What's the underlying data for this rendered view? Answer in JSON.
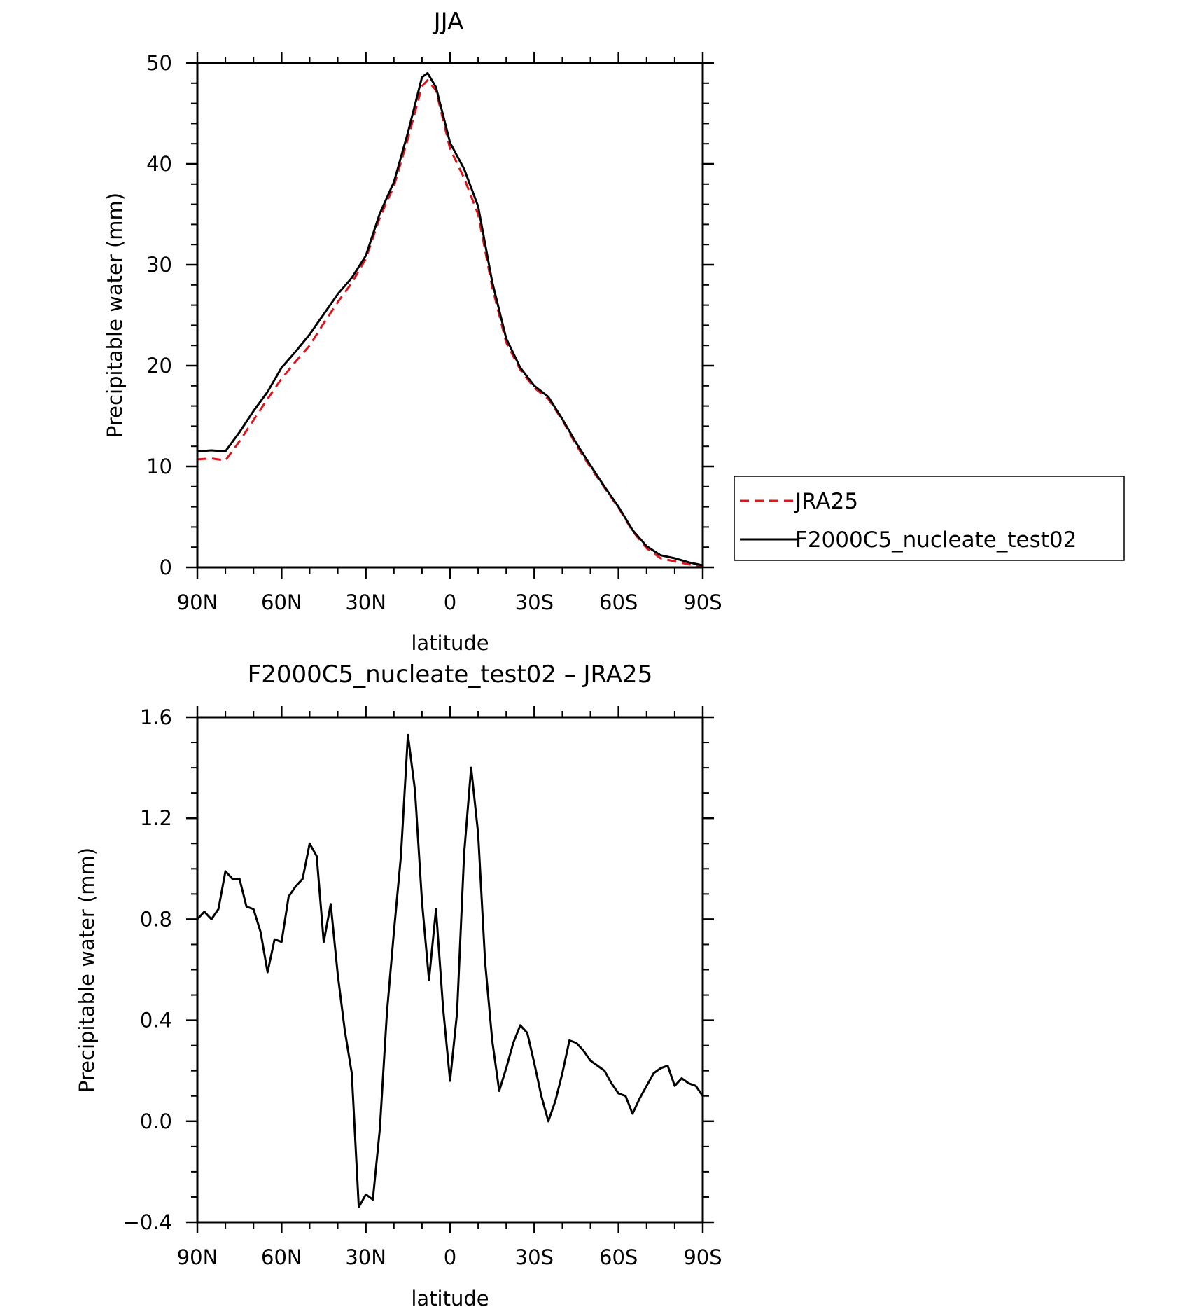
{
  "chart_data": [
    {
      "type": "line",
      "title": "JJA",
      "xlabel": "latitude",
      "ylabel": "Precipitable water (mm)",
      "xlim": [
        90,
        -90
      ],
      "ylim": [
        0,
        50
      ],
      "x_ticks": [
        {
          "value": 90,
          "label": "90N"
        },
        {
          "value": 60,
          "label": "60N"
        },
        {
          "value": 30,
          "label": "30N"
        },
        {
          "value": 0,
          "label": "0"
        },
        {
          "value": -30,
          "label": "30S"
        },
        {
          "value": -60,
          "label": "60S"
        },
        {
          "value": -90,
          "label": "90S"
        }
      ],
      "y_ticks": [
        {
          "value": 0,
          "label": "0"
        },
        {
          "value": 10,
          "label": "10"
        },
        {
          "value": 20,
          "label": "20"
        },
        {
          "value": 30,
          "label": "30"
        },
        {
          "value": 40,
          "label": "40"
        },
        {
          "value": 50,
          "label": "50"
        }
      ],
      "legend": {
        "placement": "right",
        "entries": [
          "JRA25",
          "F2000C5_nucleate_test02"
        ]
      },
      "series": [
        {
          "name": "JRA25",
          "color": "#e0141e",
          "dash": "dashed",
          "x": [
            90,
            85,
            80,
            75,
            70,
            65,
            60,
            55,
            50,
            45,
            40,
            35,
            30,
            25,
            20,
            15,
            10,
            8,
            5,
            0,
            -5,
            -10,
            -15,
            -20,
            -25,
            -30,
            -35,
            -40,
            -45,
            -50,
            -55,
            -60,
            -65,
            -70,
            -75,
            -80,
            -85,
            -90
          ],
          "values": [
            10.7,
            10.8,
            10.6,
            12.5,
            14.6,
            16.7,
            18.7,
            20.4,
            22.0,
            24.2,
            26.3,
            28.2,
            30.6,
            34.7,
            37.8,
            42.5,
            47.7,
            48.3,
            47.3,
            41.5,
            38.6,
            35.0,
            27.8,
            22.3,
            19.6,
            17.8,
            16.7,
            14.6,
            12.1,
            9.9,
            7.9,
            5.9,
            3.6,
            1.9,
            0.9,
            0.6,
            0.3,
            0.1
          ]
        },
        {
          "name": "F2000C5_nucleate_test02",
          "color": "#000000",
          "dash": "solid",
          "x": [
            90,
            85,
            80,
            75,
            70,
            65,
            60,
            55,
            50,
            45,
            40,
            35,
            30,
            25,
            20,
            15,
            10,
            8,
            5,
            0,
            -5,
            -10,
            -15,
            -20,
            -25,
            -30,
            -35,
            -40,
            -45,
            -50,
            -55,
            -60,
            -65,
            -70,
            -75,
            -80,
            -85,
            -90
          ],
          "values": [
            11.5,
            11.6,
            11.5,
            13.4,
            15.5,
            17.4,
            19.8,
            21.4,
            23.1,
            25.1,
            27.1,
            28.7,
            30.9,
            35.1,
            38.2,
            43.1,
            48.6,
            49.0,
            47.6,
            42.1,
            39.5,
            35.8,
            28.3,
            22.7,
            19.8,
            18.0,
            16.9,
            14.7,
            12.3,
            10.1,
            8.0,
            6.0,
            3.7,
            2.1,
            1.2,
            0.9,
            0.5,
            0.2
          ]
        }
      ]
    },
    {
      "type": "line",
      "title": "F2000C5_nucleate_test02 – JRA25",
      "xlabel": "latitude",
      "ylabel": "Precipitable water (mm)",
      "xlim": [
        90,
        -90
      ],
      "ylim": [
        -0.4,
        1.6
      ],
      "x_ticks": [
        {
          "value": 90,
          "label": "90N"
        },
        {
          "value": 60,
          "label": "60N"
        },
        {
          "value": 30,
          "label": "30N"
        },
        {
          "value": 0,
          "label": "0"
        },
        {
          "value": -30,
          "label": "30S"
        },
        {
          "value": -60,
          "label": "60S"
        },
        {
          "value": -90,
          "label": "90S"
        }
      ],
      "y_ticks": [
        {
          "value": -0.4,
          "label": "−0.4"
        },
        {
          "value": 0.0,
          "label": "0.0"
        },
        {
          "value": 0.4,
          "label": "0.4"
        },
        {
          "value": 0.8,
          "label": "0.8"
        },
        {
          "value": 1.2,
          "label": "1.2"
        },
        {
          "value": 1.6,
          "label": "1.6"
        }
      ],
      "series": [
        {
          "color": "#000000",
          "dash": "solid",
          "x": [
            90,
            87.5,
            85,
            82.5,
            80,
            77.5,
            75,
            72.5,
            70,
            67.5,
            65,
            62.5,
            60,
            57.5,
            55,
            52.5,
            50,
            47.5,
            45,
            42.5,
            40,
            37.5,
            35,
            32.5,
            30,
            27.5,
            25,
            22.5,
            20,
            17.5,
            15,
            12.5,
            10,
            7.5,
            5,
            2.5,
            0,
            -2.5,
            -5,
            -7.5,
            -10,
            -12.5,
            -15,
            -17.5,
            -20,
            -22.5,
            -25,
            -27.5,
            -30,
            -32.5,
            -35,
            -37.5,
            -40,
            -42.5,
            -45,
            -47.5,
            -50,
            -52.5,
            -55,
            -57.5,
            -60,
            -62.5,
            -65,
            -67.5,
            -70,
            -72.5,
            -75,
            -77.5,
            -80,
            -82.5,
            -85,
            -87.5,
            -90
          ],
          "values": [
            0.8,
            0.83,
            0.8,
            0.84,
            0.99,
            0.96,
            0.96,
            0.85,
            0.84,
            0.75,
            0.59,
            0.72,
            0.71,
            0.89,
            0.93,
            0.96,
            1.1,
            1.05,
            0.71,
            0.86,
            0.58,
            0.36,
            0.19,
            -0.34,
            -0.29,
            -0.31,
            -0.03,
            0.43,
            0.75,
            1.05,
            1.53,
            1.31,
            0.87,
            0.56,
            0.84,
            0.45,
            0.16,
            0.43,
            1.06,
            1.4,
            1.14,
            0.63,
            0.32,
            0.12,
            0.21,
            0.31,
            0.38,
            0.35,
            0.23,
            0.1,
            0.0,
            0.08,
            0.19,
            0.32,
            0.31,
            0.28,
            0.24,
            0.22,
            0.2,
            0.15,
            0.11,
            0.1,
            0.03,
            0.09,
            0.14,
            0.19,
            0.21,
            0.22,
            0.14,
            0.17,
            0.15,
            0.14,
            0.1
          ]
        }
      ]
    }
  ]
}
